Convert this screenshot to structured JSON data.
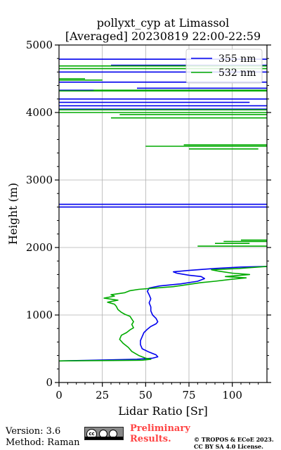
{
  "chart_data": {
    "type": "line",
    "title_line1": "pollyxt_cyp at Limassol",
    "title_line2": "[Averaged] 20230819 22:00-22:59",
    "xlabel": "Lidar Ratio [Sr]",
    "ylabel": "Height (m)",
    "xlim": [
      0,
      120
    ],
    "ylim": [
      0,
      5000
    ],
    "x_ticks": [
      0,
      25,
      50,
      75,
      100
    ],
    "y_ticks": [
      0,
      1000,
      2000,
      3000,
      4000,
      5000
    ],
    "grid": true,
    "legend_position": "top-right",
    "series": [
      {
        "name": "355 nm",
        "color": "#0000ee",
        "points": [
          [
            0,
            320
          ],
          [
            20,
            330
          ],
          [
            45,
            345
          ],
          [
            54,
            360
          ],
          [
            57,
            380
          ],
          [
            56,
            410
          ],
          [
            52,
            450
          ],
          [
            48,
            500
          ],
          [
            47,
            560
          ],
          [
            47,
            620
          ],
          [
            48,
            680
          ],
          [
            49,
            740
          ],
          [
            51,
            790
          ],
          [
            53,
            830
          ],
          [
            56,
            870
          ],
          [
            57,
            900
          ],
          [
            56,
            950
          ],
          [
            54,
            1000
          ],
          [
            53,
            1060
          ],
          [
            53,
            1120
          ],
          [
            52,
            1180
          ],
          [
            53,
            1240
          ],
          [
            52,
            1300
          ],
          [
            51,
            1350
          ],
          [
            52,
            1400
          ],
          [
            58,
            1430
          ],
          [
            70,
            1460
          ],
          [
            80,
            1500
          ],
          [
            84,
            1540
          ],
          [
            82,
            1570
          ],
          [
            75,
            1590
          ],
          [
            68,
            1620
          ],
          [
            66,
            1640
          ],
          [
            75,
            1660
          ],
          [
            90,
            1690
          ],
          [
            105,
            1710
          ],
          [
            120,
            1720
          ],
          [
            null,
            null
          ],
          [
            0,
            2600
          ],
          [
            120,
            2600
          ],
          [
            null,
            null
          ],
          [
            0,
            2640
          ],
          [
            120,
            2640
          ],
          [
            null,
            null
          ],
          [
            0,
            4050
          ],
          [
            120,
            4050
          ],
          [
            null,
            null
          ],
          [
            0,
            4100
          ],
          [
            120,
            4100
          ],
          [
            null,
            null
          ],
          [
            0,
            4150
          ],
          [
            110,
            4150
          ],
          [
            null,
            null
          ],
          [
            0,
            4200
          ],
          [
            120,
            4200
          ],
          [
            null,
            null
          ],
          [
            0,
            4330
          ],
          [
            120,
            4330
          ],
          [
            null,
            null
          ],
          [
            45,
            4360
          ],
          [
            120,
            4360
          ],
          [
            null,
            null
          ],
          [
            0,
            4450
          ],
          [
            120,
            4450
          ],
          [
            null,
            null
          ],
          [
            0,
            4600
          ],
          [
            120,
            4600
          ],
          [
            null,
            null
          ],
          [
            30,
            4700
          ],
          [
            120,
            4700
          ],
          [
            null,
            null
          ],
          [
            0,
            4790
          ],
          [
            120,
            4790
          ]
        ]
      },
      {
        "name": "532 nm",
        "color": "#00aa00",
        "points": [
          [
            0,
            320
          ],
          [
            25,
            325
          ],
          [
            48,
            330
          ],
          [
            53,
            345
          ],
          [
            50,
            360
          ],
          [
            46,
            400
          ],
          [
            42,
            460
          ],
          [
            40,
            520
          ],
          [
            37,
            580
          ],
          [
            35,
            640
          ],
          [
            36,
            700
          ],
          [
            39,
            740
          ],
          [
            41,
            780
          ],
          [
            43,
            810
          ],
          [
            42,
            860
          ],
          [
            43,
            900
          ],
          [
            42,
            940
          ],
          [
            41,
            980
          ],
          [
            38,
            1010
          ],
          [
            36,
            1040
          ],
          [
            34,
            1080
          ],
          [
            33,
            1130
          ],
          [
            32,
            1160
          ],
          [
            28,
            1190
          ],
          [
            34,
            1220
          ],
          [
            26,
            1250
          ],
          [
            32,
            1280
          ],
          [
            30,
            1300
          ],
          [
            38,
            1330
          ],
          [
            41,
            1360
          ],
          [
            46,
            1380
          ],
          [
            56,
            1400
          ],
          [
            66,
            1420
          ],
          [
            74,
            1450
          ],
          [
            82,
            1480
          ],
          [
            90,
            1500
          ],
          [
            100,
            1530
          ],
          [
            108,
            1550
          ],
          [
            96,
            1570
          ],
          [
            110,
            1600
          ],
          [
            100,
            1620
          ],
          [
            92,
            1650
          ],
          [
            88,
            1670
          ],
          [
            104,
            1690
          ],
          [
            120,
            1720
          ],
          [
            null,
            null
          ],
          [
            80,
            2020
          ],
          [
            120,
            2020
          ],
          [
            null,
            null
          ],
          [
            90,
            2060
          ],
          [
            110,
            2060
          ],
          [
            null,
            null
          ],
          [
            95,
            2090
          ],
          [
            120,
            2090
          ],
          [
            null,
            null
          ],
          [
            105,
            2110
          ],
          [
            120,
            2110
          ],
          [
            null,
            null
          ],
          [
            50,
            3500
          ],
          [
            120,
            3500
          ],
          [
            null,
            null
          ],
          [
            72,
            3520
          ],
          [
            120,
            3520
          ],
          [
            null,
            null
          ],
          [
            75,
            3460
          ],
          [
            115,
            3460
          ],
          [
            null,
            null
          ],
          [
            30,
            3920
          ],
          [
            120,
            3920
          ],
          [
            null,
            null
          ],
          [
            35,
            3970
          ],
          [
            120,
            3970
          ],
          [
            null,
            null
          ],
          [
            0,
            4000
          ],
          [
            120,
            4000
          ],
          [
            null,
            null
          ],
          [
            0,
            4040
          ],
          [
            120,
            4040
          ],
          [
            null,
            null
          ],
          [
            0,
            4320
          ],
          [
            120,
            4320
          ],
          [
            null,
            null
          ],
          [
            20,
            4330
          ],
          [
            120,
            4330
          ],
          [
            null,
            null
          ],
          [
            0,
            4480
          ],
          [
            25,
            4480
          ],
          [
            null,
            null
          ],
          [
            0,
            4500
          ],
          [
            15,
            4500
          ],
          [
            null,
            null
          ],
          [
            0,
            4650
          ],
          [
            120,
            4650
          ],
          [
            null,
            null
          ],
          [
            0,
            4690
          ],
          [
            120,
            4690
          ]
        ]
      }
    ]
  },
  "footer": {
    "version": "Version: 3.6",
    "method": "Method: Raman",
    "preliminary_line1": "Preliminary",
    "preliminary_line2": "Results.",
    "copyright_line1": "© TROPOS & ECoE 2023.",
    "copyright_line2": "CC BY SA 4.0 License.",
    "cc_badge_text": "cc"
  }
}
